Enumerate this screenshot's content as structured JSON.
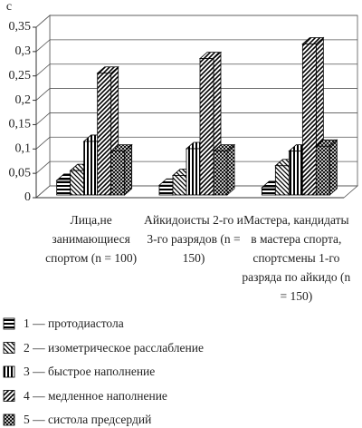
{
  "chart_data": {
    "type": "bar3d",
    "y_label": "с",
    "categories": [
      "Лица,не занимающиеся спортом (n = 100)",
      "Айкидоисты 2-го и 3-го разрядов (n = 150)",
      "Мастера, кандидаты в мастера спорта, спортсмены 1-го разряда по айкидо (n = 150)"
    ],
    "series": [
      {
        "name": "1 — протодиастола",
        "color": "#000000",
        "pattern": "horizontal",
        "values": [
          0.03,
          0.02,
          0.015
        ]
      },
      {
        "name": "2 — изометрическое расслабление",
        "color": "#000000",
        "pattern": "back",
        "values": [
          0.05,
          0.04,
          0.06
        ]
      },
      {
        "name": "3 — быстрое наполнение",
        "color": "#000000",
        "pattern": "vertical",
        "values": [
          0.11,
          0.095,
          0.09
        ]
      },
      {
        "name": "4 — медленное наполнение",
        "color": "#000000",
        "pattern": "forward",
        "values": [
          0.25,
          0.28,
          0.31
        ]
      },
      {
        "name": "5 — систола предсердий",
        "color": "#000000",
        "pattern": "cross",
        "values": [
          0.09,
          0.09,
          0.1
        ]
      }
    ],
    "ylim": [
      0,
      0.35
    ],
    "yticks": [
      0,
      {
        "value": 0.05,
        "label": "0,05"
      },
      {
        "value": 0.1,
        "label": "0,1"
      },
      {
        "value": 0.15,
        "label": "0,15"
      },
      {
        "value": 0.2,
        "label": "0,2"
      },
      {
        "value": 0.25,
        "label": "0,25"
      },
      {
        "value": 0.3,
        "label": "0,3"
      },
      {
        "value": 0.35,
        "label": "0,35"
      }
    ],
    "grid": true
  }
}
